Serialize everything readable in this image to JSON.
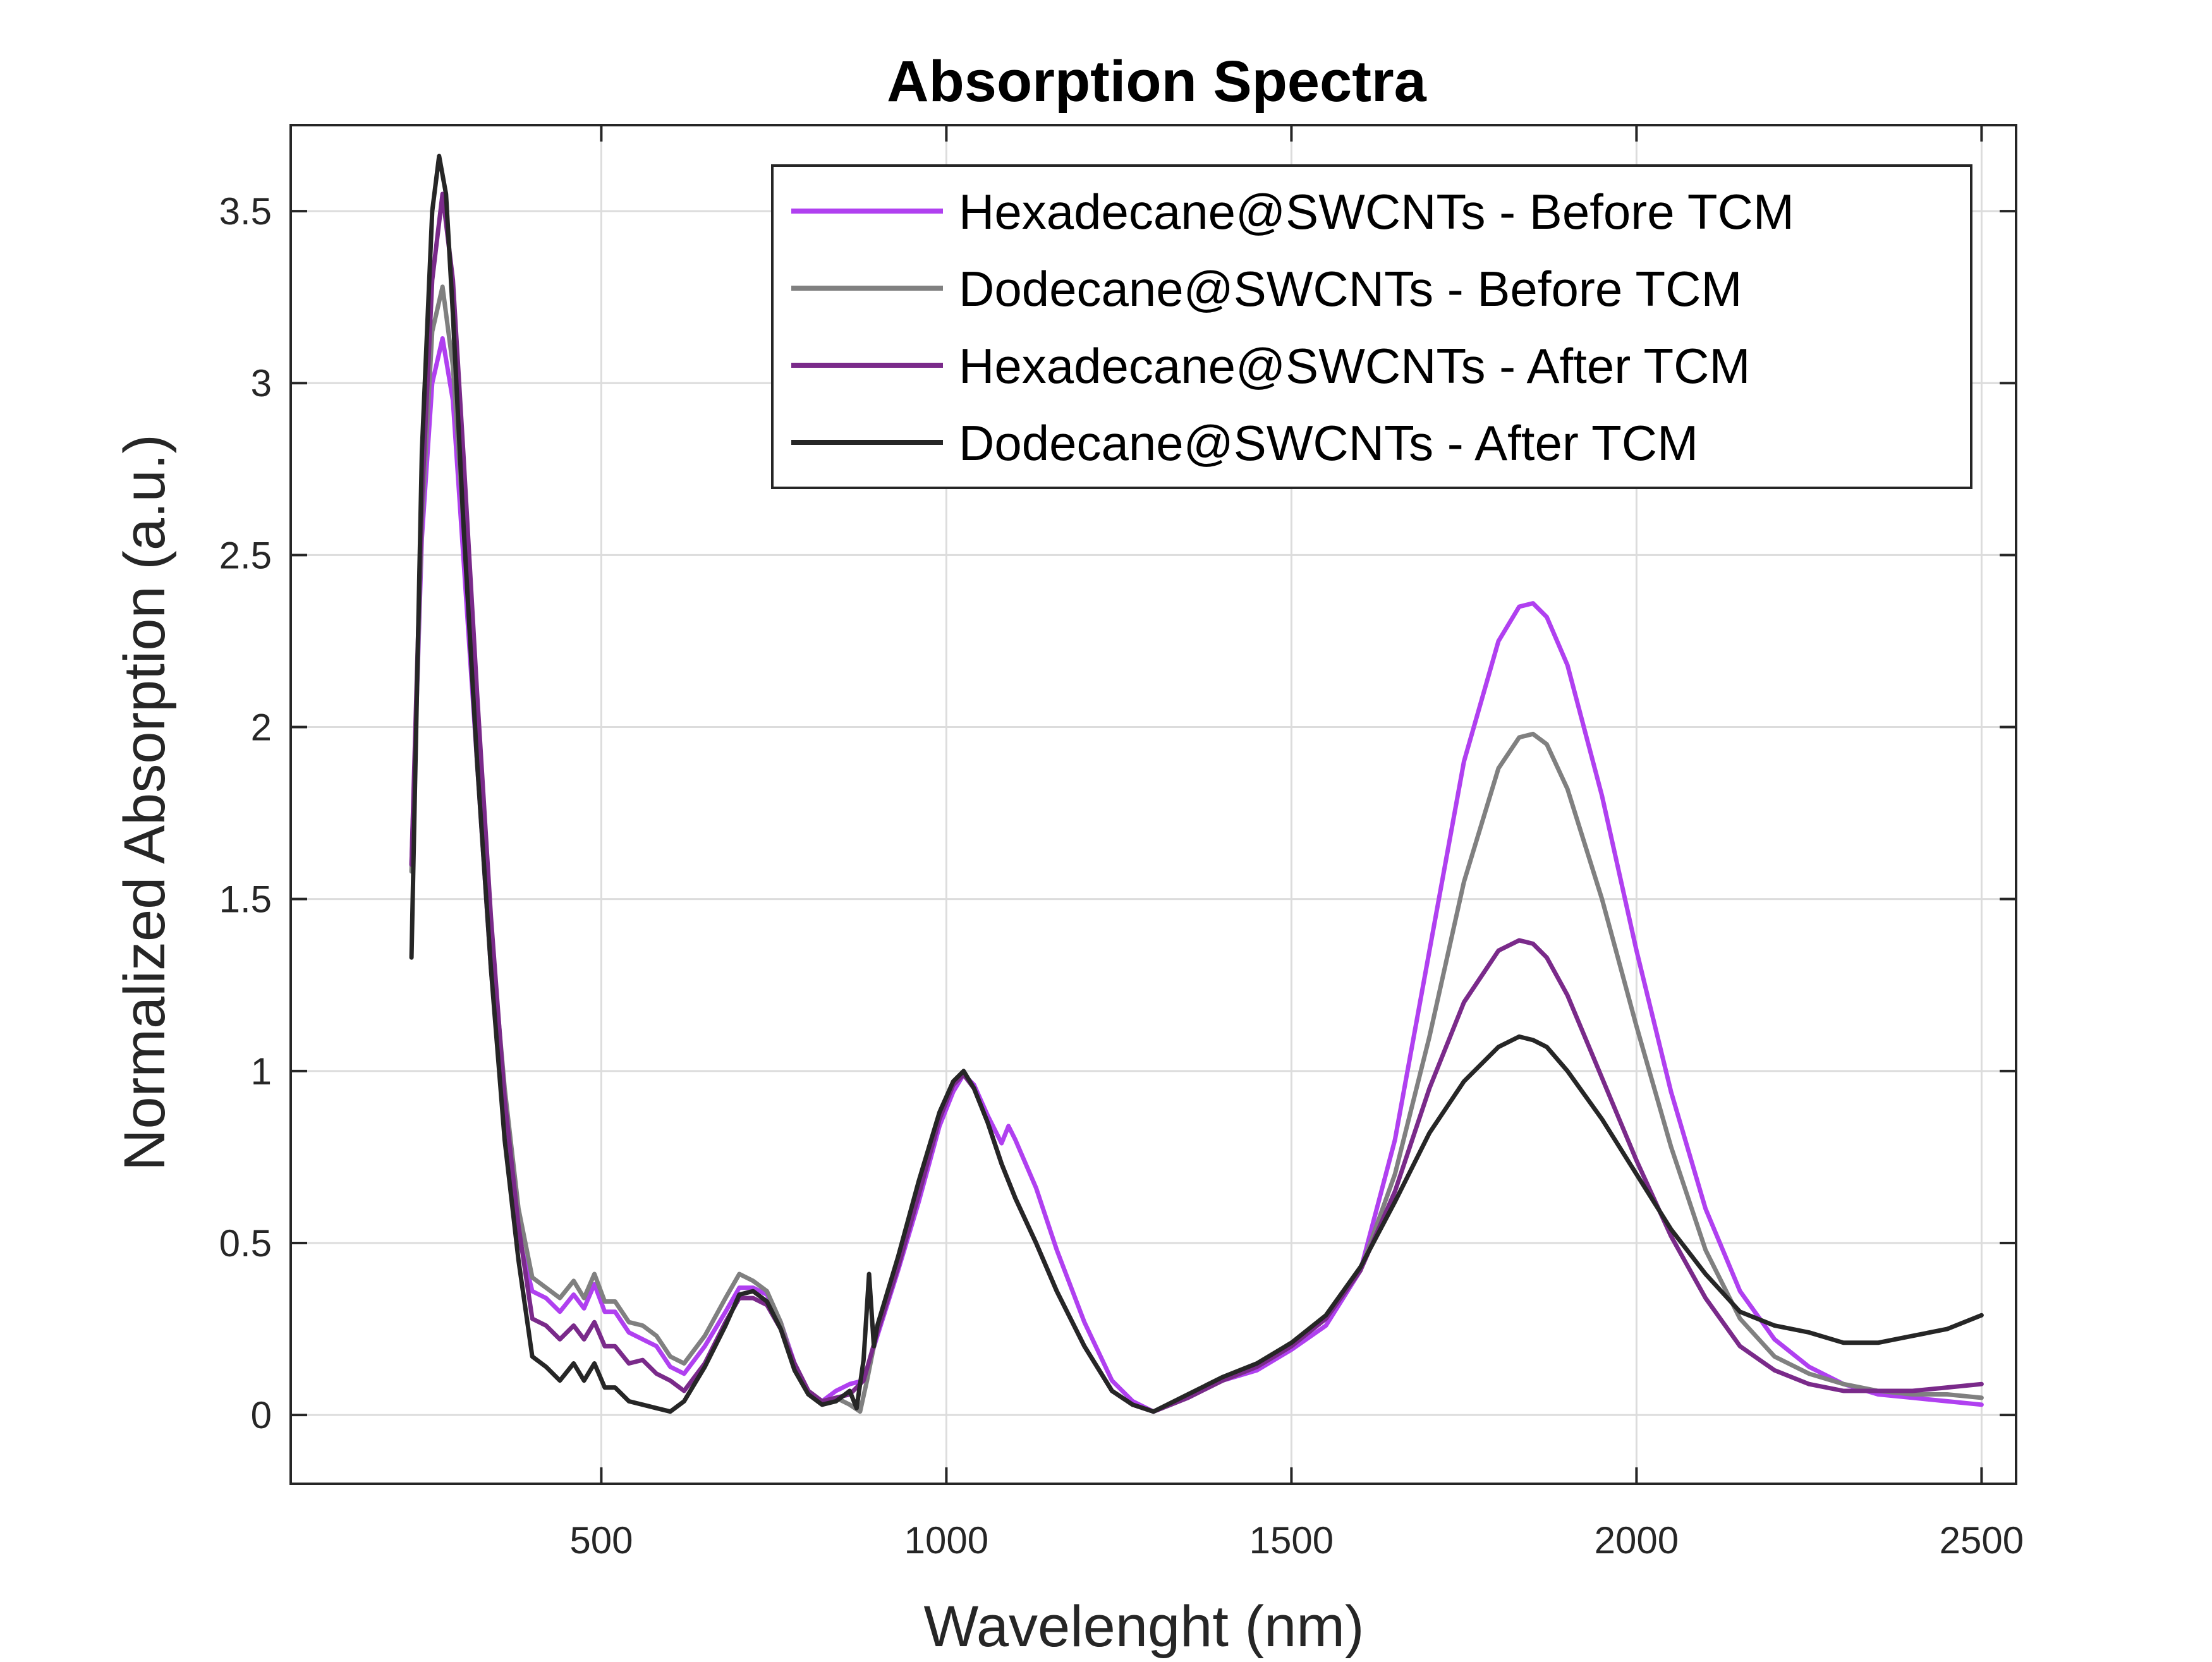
{
  "chart_data": {
    "type": "line",
    "title": "Absorption Spectra",
    "xlabel": "Wavelenght (nm)",
    "ylabel": "Normalized Absorption (a.u.)",
    "xlim": [
      50,
      2550
    ],
    "ylim": [
      -0.2,
      3.75
    ],
    "xticks": [
      500,
      1000,
      1500,
      2000,
      2500
    ],
    "xtick_labels": [
      "500",
      "1000",
      "1500",
      "2000",
      "2500"
    ],
    "yticks": [
      0,
      0.5,
      1,
      1.5,
      2,
      2.5,
      3,
      3.5
    ],
    "ytick_labels": [
      "0",
      "0.5",
      "1",
      "1.5",
      "2",
      "2.5",
      "3",
      "3.5"
    ],
    "grid": true,
    "legend_position": "top-right",
    "series": [
      {
        "name": "Hexadecane@SWCNTs - Before TCM",
        "color": "#b040f0",
        "x": [
          225,
          240,
          255,
          270,
          285,
          300,
          320,
          340,
          360,
          380,
          400,
          420,
          440,
          460,
          475,
          490,
          505,
          520,
          540,
          560,
          580,
          600,
          620,
          650,
          680,
          700,
          720,
          740,
          760,
          780,
          800,
          820,
          840,
          860,
          880,
          900,
          930,
          960,
          990,
          1010,
          1025,
          1040,
          1060,
          1080,
          1090,
          1100,
          1130,
          1160,
          1200,
          1240,
          1270,
          1300,
          1350,
          1400,
          1450,
          1500,
          1550,
          1600,
          1650,
          1700,
          1750,
          1800,
          1830,
          1850,
          1870,
          1900,
          1950,
          2000,
          2050,
          2100,
          2150,
          2200,
          2250,
          2300,
          2350,
          2400,
          2450,
          2500
        ],
        "y": [
          1.6,
          2.55,
          3.0,
          3.13,
          2.95,
          2.5,
          1.9,
          1.3,
          0.85,
          0.52,
          0.36,
          0.34,
          0.3,
          0.35,
          0.31,
          0.38,
          0.3,
          0.3,
          0.24,
          0.22,
          0.2,
          0.14,
          0.12,
          0.2,
          0.3,
          0.37,
          0.37,
          0.35,
          0.27,
          0.15,
          0.07,
          0.04,
          0.07,
          0.09,
          0.1,
          0.23,
          0.42,
          0.62,
          0.84,
          0.94,
          0.99,
          0.96,
          0.87,
          0.79,
          0.84,
          0.8,
          0.66,
          0.48,
          0.27,
          0.1,
          0.04,
          0.01,
          0.05,
          0.1,
          0.13,
          0.19,
          0.26,
          0.42,
          0.8,
          1.35,
          1.9,
          2.25,
          2.35,
          2.36,
          2.32,
          2.18,
          1.8,
          1.35,
          0.94,
          0.6,
          0.36,
          0.22,
          0.14,
          0.09,
          0.06,
          0.05,
          0.04,
          0.03
        ]
      },
      {
        "name": "Dodecane@SWCNTs - Before TCM",
        "color": "#808080",
        "x": [
          225,
          240,
          255,
          270,
          285,
          300,
          320,
          340,
          360,
          380,
          400,
          420,
          440,
          460,
          475,
          490,
          505,
          520,
          540,
          560,
          580,
          600,
          620,
          650,
          680,
          700,
          720,
          740,
          760,
          780,
          800,
          820,
          840,
          860,
          875,
          885,
          900,
          930,
          960,
          990,
          1010,
          1025,
          1040,
          1060,
          1080,
          1100,
          1130,
          1160,
          1200,
          1240,
          1270,
          1300,
          1350,
          1400,
          1450,
          1500,
          1550,
          1600,
          1650,
          1700,
          1750,
          1800,
          1830,
          1850,
          1870,
          1900,
          1950,
          2000,
          2050,
          2100,
          2150,
          2200,
          2250,
          2300,
          2350,
          2400,
          2450,
          2500
        ],
        "y": [
          1.58,
          2.6,
          3.15,
          3.28,
          3.05,
          2.6,
          2.0,
          1.4,
          0.95,
          0.6,
          0.4,
          0.37,
          0.34,
          0.39,
          0.34,
          0.41,
          0.33,
          0.33,
          0.27,
          0.26,
          0.23,
          0.17,
          0.15,
          0.23,
          0.34,
          0.41,
          0.39,
          0.36,
          0.27,
          0.14,
          0.07,
          0.04,
          0.05,
          0.03,
          0.01,
          0.1,
          0.25,
          0.44,
          0.64,
          0.86,
          0.96,
          0.99,
          0.95,
          0.85,
          0.73,
          0.63,
          0.5,
          0.36,
          0.2,
          0.07,
          0.03,
          0.01,
          0.05,
          0.1,
          0.14,
          0.2,
          0.28,
          0.42,
          0.7,
          1.1,
          1.55,
          1.88,
          1.97,
          1.98,
          1.95,
          1.82,
          1.5,
          1.13,
          0.78,
          0.48,
          0.28,
          0.17,
          0.12,
          0.09,
          0.07,
          0.06,
          0.06,
          0.05
        ]
      },
      {
        "name": "Hexadecane@SWCNTs - After TCM",
        "color": "#7a2a8a",
        "x": [
          225,
          240,
          255,
          270,
          285,
          300,
          320,
          340,
          360,
          380,
          400,
          420,
          440,
          460,
          475,
          490,
          505,
          520,
          540,
          560,
          580,
          600,
          620,
          650,
          680,
          700,
          720,
          740,
          760,
          780,
          800,
          820,
          840,
          860,
          880,
          900,
          930,
          960,
          990,
          1010,
          1025,
          1040,
          1060,
          1080,
          1100,
          1130,
          1160,
          1200,
          1240,
          1270,
          1300,
          1350,
          1400,
          1450,
          1500,
          1550,
          1600,
          1650,
          1700,
          1750,
          1800,
          1830,
          1850,
          1870,
          1900,
          1950,
          2000,
          2050,
          2100,
          2150,
          2200,
          2250,
          2300,
          2350,
          2400,
          2450,
          2500
        ],
        "y": [
          1.6,
          2.65,
          3.3,
          3.55,
          3.3,
          2.8,
          2.1,
          1.45,
          0.92,
          0.55,
          0.28,
          0.26,
          0.22,
          0.26,
          0.22,
          0.27,
          0.2,
          0.2,
          0.15,
          0.16,
          0.12,
          0.1,
          0.07,
          0.15,
          0.27,
          0.34,
          0.34,
          0.32,
          0.25,
          0.15,
          0.07,
          0.04,
          0.05,
          0.06,
          0.1,
          0.24,
          0.43,
          0.64,
          0.86,
          0.96,
          0.99,
          0.95,
          0.85,
          0.73,
          0.63,
          0.5,
          0.36,
          0.2,
          0.07,
          0.03,
          0.01,
          0.05,
          0.1,
          0.14,
          0.2,
          0.28,
          0.42,
          0.65,
          0.95,
          1.2,
          1.35,
          1.38,
          1.37,
          1.33,
          1.22,
          0.98,
          0.74,
          0.52,
          0.34,
          0.2,
          0.13,
          0.09,
          0.07,
          0.07,
          0.07,
          0.08,
          0.09
        ]
      },
      {
        "name": "Dodecane@SWCNTs - After TCM",
        "color": "#262626",
        "x": [
          225,
          240,
          255,
          265,
          275,
          285,
          300,
          320,
          340,
          360,
          380,
          400,
          420,
          440,
          460,
          475,
          490,
          505,
          520,
          540,
          560,
          580,
          600,
          620,
          650,
          680,
          700,
          720,
          740,
          760,
          780,
          800,
          820,
          840,
          860,
          870,
          880,
          888,
          895,
          900,
          930,
          960,
          990,
          1010,
          1025,
          1040,
          1060,
          1080,
          1100,
          1130,
          1160,
          1200,
          1240,
          1270,
          1300,
          1350,
          1400,
          1450,
          1500,
          1550,
          1600,
          1650,
          1700,
          1750,
          1800,
          1830,
          1850,
          1870,
          1900,
          1950,
          2000,
          2050,
          2100,
          2150,
          2200,
          2250,
          2300,
          2350,
          2400,
          2450,
          2500
        ],
        "y": [
          1.33,
          2.8,
          3.5,
          3.66,
          3.55,
          3.2,
          2.6,
          1.9,
          1.3,
          0.8,
          0.45,
          0.17,
          0.14,
          0.1,
          0.15,
          0.1,
          0.15,
          0.08,
          0.08,
          0.04,
          0.03,
          0.02,
          0.01,
          0.04,
          0.14,
          0.26,
          0.35,
          0.36,
          0.33,
          0.25,
          0.13,
          0.06,
          0.03,
          0.04,
          0.07,
          0.02,
          0.16,
          0.41,
          0.2,
          0.26,
          0.46,
          0.68,
          0.88,
          0.97,
          1.0,
          0.95,
          0.85,
          0.73,
          0.63,
          0.5,
          0.36,
          0.2,
          0.07,
          0.03,
          0.01,
          0.06,
          0.11,
          0.15,
          0.21,
          0.29,
          0.43,
          0.62,
          0.82,
          0.97,
          1.07,
          1.1,
          1.09,
          1.07,
          1.0,
          0.86,
          0.7,
          0.54,
          0.41,
          0.3,
          0.26,
          0.24,
          0.21,
          0.21,
          0.23,
          0.25,
          0.29
        ]
      }
    ]
  }
}
